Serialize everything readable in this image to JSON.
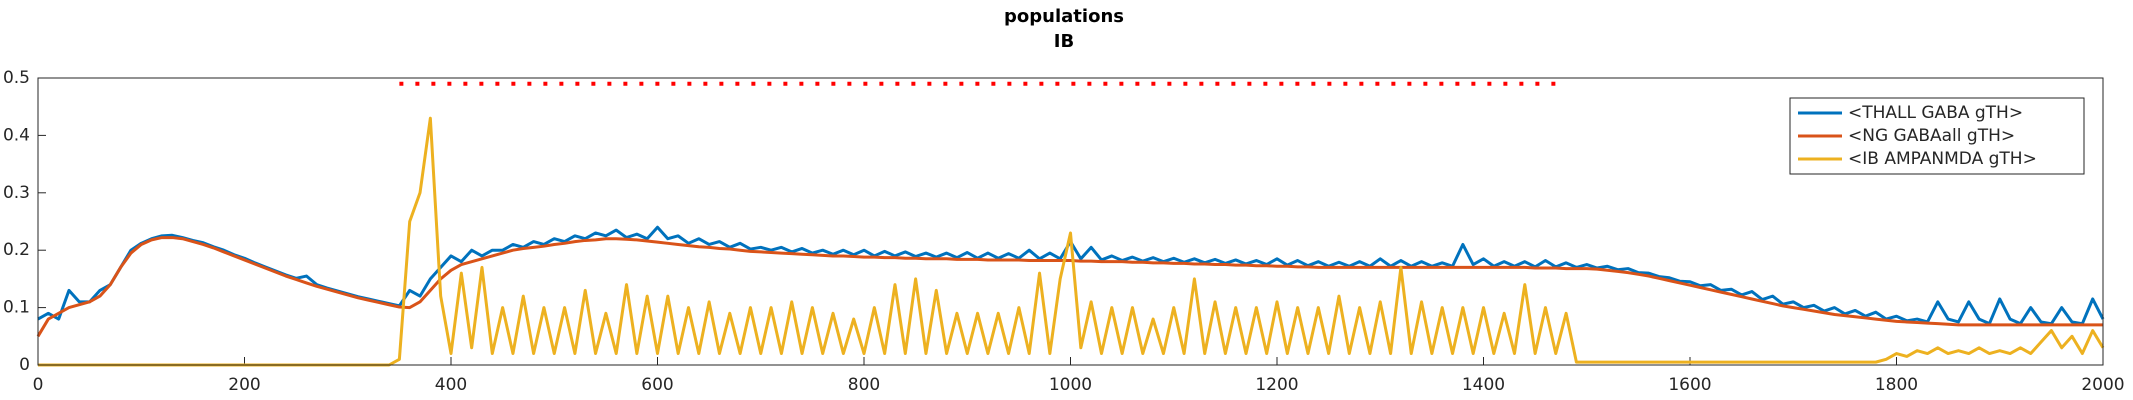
{
  "chart_data": {
    "type": "line",
    "title": "populations",
    "subtitle": "IB",
    "x": [
      0,
      10,
      20,
      30,
      40,
      50,
      60,
      70,
      80,
      90,
      100,
      110,
      120,
      130,
      140,
      150,
      160,
      170,
      180,
      190,
      200,
      210,
      220,
      230,
      240,
      250,
      260,
      270,
      280,
      290,
      300,
      310,
      320,
      330,
      340,
      350,
      360,
      370,
      380,
      390,
      400,
      410,
      420,
      430,
      440,
      450,
      460,
      470,
      480,
      490,
      500,
      510,
      520,
      530,
      540,
      550,
      560,
      570,
      580,
      590,
      600,
      610,
      620,
      630,
      640,
      650,
      660,
      670,
      680,
      690,
      700,
      710,
      720,
      730,
      740,
      750,
      760,
      770,
      780,
      790,
      800,
      810,
      820,
      830,
      840,
      850,
      860,
      870,
      880,
      890,
      900,
      910,
      920,
      930,
      940,
      950,
      960,
      970,
      980,
      990,
      1000,
      1010,
      1020,
      1030,
      1040,
      1050,
      1060,
      1070,
      1080,
      1090,
      1100,
      1110,
      1120,
      1130,
      1140,
      1150,
      1160,
      1170,
      1180,
      1190,
      1200,
      1210,
      1220,
      1230,
      1240,
      1250,
      1260,
      1270,
      1280,
      1290,
      1300,
      1310,
      1320,
      1330,
      1340,
      1350,
      1360,
      1370,
      1380,
      1390,
      1400,
      1410,
      1420,
      1430,
      1440,
      1450,
      1460,
      1470,
      1480,
      1490,
      1500,
      1510,
      1520,
      1530,
      1540,
      1550,
      1560,
      1570,
      1580,
      1590,
      1600,
      1610,
      1620,
      1630,
      1640,
      1650,
      1660,
      1670,
      1680,
      1690,
      1700,
      1710,
      1720,
      1730,
      1740,
      1750,
      1760,
      1770,
      1780,
      1790,
      1800,
      1810,
      1820,
      1830,
      1840,
      1850,
      1860,
      1870,
      1880,
      1890,
      1900,
      1910,
      1920,
      1930,
      1940,
      1950,
      1960,
      1970,
      1980,
      1990,
      2000
    ],
    "series": [
      {
        "name": "<THALL GABA gTH>",
        "color": "#0072bd",
        "values": [
          0.08,
          0.09,
          0.08,
          0.13,
          0.11,
          0.11,
          0.13,
          0.14,
          0.17,
          0.2,
          0.212,
          0.22,
          0.225,
          0.226,
          0.222,
          0.217,
          0.213,
          0.206,
          0.2,
          0.192,
          0.186,
          0.178,
          0.171,
          0.164,
          0.157,
          0.151,
          0.155,
          0.14,
          0.134,
          0.129,
          0.124,
          0.119,
          0.115,
          0.111,
          0.107,
          0.103,
          0.13,
          0.12,
          0.15,
          0.17,
          0.19,
          0.18,
          0.2,
          0.19,
          0.2,
          0.2,
          0.21,
          0.205,
          0.215,
          0.21,
          0.22,
          0.215,
          0.225,
          0.22,
          0.23,
          0.225,
          0.235,
          0.222,
          0.228,
          0.22,
          0.24,
          0.22,
          0.225,
          0.212,
          0.22,
          0.21,
          0.215,
          0.205,
          0.212,
          0.202,
          0.205,
          0.2,
          0.205,
          0.197,
          0.203,
          0.195,
          0.2,
          0.193,
          0.2,
          0.192,
          0.2,
          0.19,
          0.198,
          0.19,
          0.197,
          0.189,
          0.195,
          0.188,
          0.195,
          0.187,
          0.196,
          0.186,
          0.195,
          0.186,
          0.194,
          0.186,
          0.2,
          0.185,
          0.195,
          0.185,
          0.215,
          0.185,
          0.205,
          0.183,
          0.19,
          0.182,
          0.188,
          0.181,
          0.187,
          0.18,
          0.186,
          0.179,
          0.185,
          0.178,
          0.184,
          0.177,
          0.183,
          0.176,
          0.182,
          0.175,
          0.185,
          0.174,
          0.182,
          0.173,
          0.18,
          0.172,
          0.179,
          0.172,
          0.18,
          0.172,
          0.185,
          0.172,
          0.182,
          0.172,
          0.18,
          0.172,
          0.178,
          0.172,
          0.21,
          0.175,
          0.185,
          0.172,
          0.18,
          0.172,
          0.18,
          0.171,
          0.182,
          0.171,
          0.178,
          0.17,
          0.175,
          0.169,
          0.172,
          0.166,
          0.168,
          0.161,
          0.16,
          0.154,
          0.152,
          0.146,
          0.145,
          0.138,
          0.14,
          0.13,
          0.132,
          0.122,
          0.128,
          0.114,
          0.12,
          0.106,
          0.11,
          0.1,
          0.104,
          0.094,
          0.1,
          0.089,
          0.095,
          0.085,
          0.092,
          0.08,
          0.085,
          0.077,
          0.08,
          0.075,
          0.11,
          0.08,
          0.075,
          0.11,
          0.08,
          0.072,
          0.115,
          0.08,
          0.072,
          0.1,
          0.075,
          0.072,
          0.1,
          0.075,
          0.072,
          0.115,
          0.08
        ]
      },
      {
        "name": "<NG GABAall gTH>",
        "color": "#d95319",
        "values": [
          0.05,
          0.08,
          0.09,
          0.1,
          0.105,
          0.11,
          0.12,
          0.14,
          0.17,
          0.195,
          0.21,
          0.218,
          0.222,
          0.222,
          0.22,
          0.215,
          0.21,
          0.204,
          0.197,
          0.19,
          0.183,
          0.176,
          0.169,
          0.162,
          0.155,
          0.149,
          0.143,
          0.137,
          0.132,
          0.127,
          0.122,
          0.117,
          0.113,
          0.109,
          0.105,
          0.101,
          0.1,
          0.11,
          0.13,
          0.15,
          0.165,
          0.175,
          0.18,
          0.185,
          0.19,
          0.195,
          0.2,
          0.203,
          0.205,
          0.207,
          0.21,
          0.212,
          0.215,
          0.217,
          0.218,
          0.22,
          0.22,
          0.219,
          0.218,
          0.216,
          0.214,
          0.212,
          0.21,
          0.208,
          0.206,
          0.205,
          0.203,
          0.202,
          0.2,
          0.198,
          0.197,
          0.196,
          0.195,
          0.194,
          0.193,
          0.192,
          0.191,
          0.19,
          0.19,
          0.189,
          0.188,
          0.188,
          0.187,
          0.187,
          0.186,
          0.186,
          0.185,
          0.185,
          0.185,
          0.184,
          0.184,
          0.184,
          0.183,
          0.183,
          0.183,
          0.183,
          0.182,
          0.182,
          0.182,
          0.182,
          0.182,
          0.181,
          0.181,
          0.18,
          0.18,
          0.18,
          0.179,
          0.179,
          0.178,
          0.178,
          0.177,
          0.177,
          0.176,
          0.176,
          0.175,
          0.175,
          0.174,
          0.174,
          0.173,
          0.173,
          0.172,
          0.172,
          0.171,
          0.171,
          0.17,
          0.17,
          0.17,
          0.17,
          0.17,
          0.17,
          0.17,
          0.17,
          0.17,
          0.17,
          0.17,
          0.17,
          0.17,
          0.17,
          0.17,
          0.17,
          0.17,
          0.17,
          0.17,
          0.17,
          0.17,
          0.169,
          0.169,
          0.169,
          0.168,
          0.168,
          0.168,
          0.167,
          0.165,
          0.163,
          0.161,
          0.158,
          0.155,
          0.151,
          0.147,
          0.143,
          0.139,
          0.135,
          0.131,
          0.127,
          0.123,
          0.119,
          0.115,
          0.111,
          0.107,
          0.103,
          0.1,
          0.097,
          0.094,
          0.091,
          0.088,
          0.086,
          0.084,
          0.082,
          0.08,
          0.078,
          0.076,
          0.075,
          0.074,
          0.073,
          0.072,
          0.071,
          0.07,
          0.07,
          0.07,
          0.07,
          0.07,
          0.07,
          0.07,
          0.07,
          0.07,
          0.07,
          0.07,
          0.07,
          0.07,
          0.07,
          0.07
        ]
      },
      {
        "name": "<IB AMPANMDA gTH>",
        "color": "#edb120",
        "values": [
          0,
          0,
          0,
          0,
          0,
          0,
          0,
          0,
          0,
          0,
          0,
          0,
          0,
          0,
          0,
          0,
          0,
          0,
          0,
          0,
          0,
          0,
          0,
          0,
          0,
          0,
          0,
          0,
          0,
          0,
          0,
          0,
          0,
          0,
          0,
          0.01,
          0.25,
          0.3,
          0.43,
          0.12,
          0.02,
          0.16,
          0.03,
          0.17,
          0.02,
          0.1,
          0.02,
          0.12,
          0.02,
          0.1,
          0.02,
          0.1,
          0.02,
          0.13,
          0.02,
          0.09,
          0.02,
          0.14,
          0.02,
          0.12,
          0.02,
          0.12,
          0.02,
          0.1,
          0.02,
          0.11,
          0.02,
          0.09,
          0.02,
          0.1,
          0.02,
          0.1,
          0.02,
          0.11,
          0.02,
          0.1,
          0.02,
          0.09,
          0.02,
          0.08,
          0.02,
          0.1,
          0.02,
          0.14,
          0.02,
          0.15,
          0.02,
          0.13,
          0.02,
          0.09,
          0.02,
          0.09,
          0.02,
          0.09,
          0.02,
          0.1,
          0.02,
          0.16,
          0.02,
          0.15,
          0.23,
          0.03,
          0.11,
          0.02,
          0.1,
          0.02,
          0.1,
          0.02,
          0.08,
          0.02,
          0.1,
          0.02,
          0.15,
          0.02,
          0.11,
          0.02,
          0.1,
          0.02,
          0.1,
          0.02,
          0.11,
          0.02,
          0.1,
          0.02,
          0.1,
          0.02,
          0.12,
          0.02,
          0.1,
          0.02,
          0.11,
          0.02,
          0.17,
          0.02,
          0.11,
          0.02,
          0.1,
          0.02,
          0.1,
          0.02,
          0.1,
          0.02,
          0.09,
          0.02,
          0.14,
          0.02,
          0.1,
          0.02,
          0.09,
          0.005,
          0.005,
          0.005,
          0.005,
          0.005,
          0.005,
          0.005,
          0.005,
          0.005,
          0.005,
          0.005,
          0.005,
          0.005,
          0.005,
          0.005,
          0.005,
          0.005,
          0.005,
          0.005,
          0.005,
          0.005,
          0.005,
          0.005,
          0.005,
          0.005,
          0.005,
          0.005,
          0.005,
          0.005,
          0.005,
          0.01,
          0.02,
          0.015,
          0.025,
          0.02,
          0.03,
          0.02,
          0.025,
          0.02,
          0.03,
          0.02,
          0.025,
          0.02,
          0.03,
          0.02,
          0.04,
          0.06,
          0.03,
          0.05,
          0.02,
          0.06,
          0.03
        ]
      }
    ],
    "dotted_line": {
      "x": [
        350,
        1480
      ],
      "y": 0.49,
      "color": "#ff0000"
    },
    "xlim": [
      0,
      2000
    ],
    "xticks": [
      0,
      200,
      400,
      600,
      800,
      1000,
      1200,
      1400,
      1600,
      1800,
      2000
    ],
    "ylim": [
      0,
      0.5
    ],
    "yticks": [
      0,
      0.1,
      0.2,
      0.3,
      0.4,
      0.5
    ],
    "legend": "upper right"
  }
}
